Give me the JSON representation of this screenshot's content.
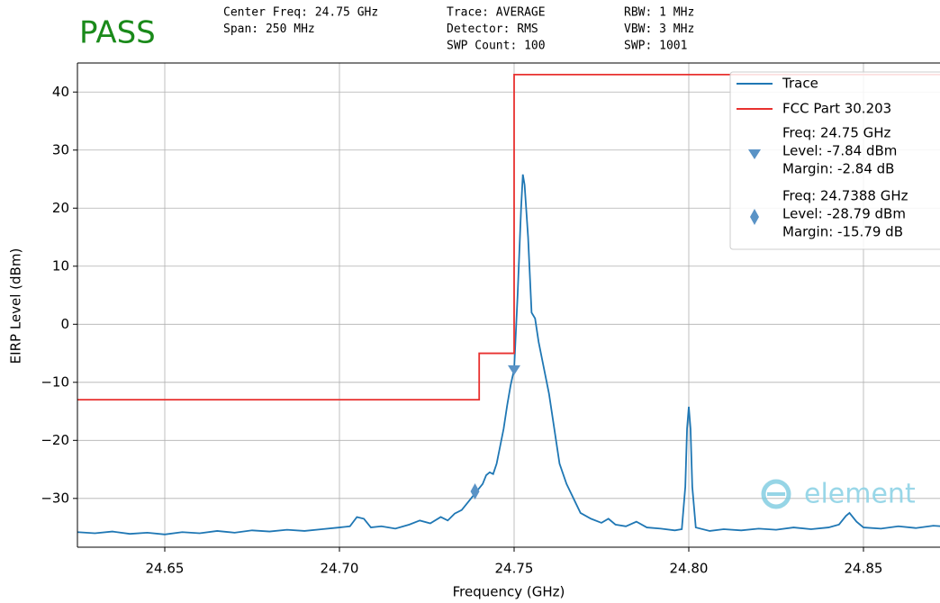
{
  "chart_data": {
    "type": "line",
    "status": "PASS",
    "status_color": "#1a8a1a",
    "info": [
      [
        "Center Freq: 24.75 GHz",
        "Span: 250 MHz"
      ],
      [
        "Trace: AVERAGE",
        "Detector: RMS",
        "SWP Count: 100"
      ],
      [
        "RBW: 1 MHz",
        "VBW: 3 MHz",
        "SWP: 1001"
      ]
    ],
    "x_label": "Frequency (GHz)",
    "y_label": "EIRP Level (dBm)",
    "xlim": [
      24.625,
      24.875
    ],
    "ylim": [
      -38.4,
      45
    ],
    "xticks": [
      24.65,
      {
        "value": 24.7,
        "label": "24.70"
      },
      24.75,
      {
        "value": 24.8,
        "label": "24.80"
      },
      24.85
    ],
    "yticks": [
      {
        "value": -30,
        "label": "−30"
      },
      {
        "value": -20,
        "label": "−20"
      },
      {
        "value": -10,
        "label": "−10"
      },
      0,
      10,
      20,
      30,
      40
    ],
    "grid": true,
    "legend": "upper right",
    "watermark": "element",
    "series": [
      {
        "name": "Trace",
        "color": "#1f77b4",
        "x": [
          24.625,
          24.63,
          24.635,
          24.64,
          24.645,
          24.65,
          24.655,
          24.66,
          24.665,
          24.67,
          24.675,
          24.68,
          24.685,
          24.69,
          24.695,
          24.7,
          24.703,
          24.705,
          24.707,
          24.709,
          24.712,
          24.716,
          24.72,
          24.723,
          24.726,
          24.729,
          24.731,
          24.733,
          24.735,
          24.737,
          24.739,
          24.741,
          24.742,
          24.743,
          24.744,
          24.745,
          24.746,
          24.747,
          24.748,
          24.749,
          24.75,
          24.751,
          24.752,
          24.7525,
          24.753,
          24.754,
          24.755,
          24.756,
          24.757,
          24.758,
          24.759,
          24.76,
          24.761,
          24.762,
          24.763,
          24.765,
          24.767,
          24.769,
          24.772,
          24.775,
          24.777,
          24.779,
          24.782,
          24.785,
          24.788,
          24.792,
          24.796,
          24.798,
          24.799,
          24.7995,
          24.8,
          24.8005,
          24.801,
          24.802,
          24.806,
          24.81,
          24.815,
          24.82,
          24.825,
          24.83,
          24.835,
          24.84,
          24.843,
          24.845,
          24.846,
          24.848,
          24.85,
          24.855,
          24.86,
          24.865,
          24.87,
          24.875
        ],
        "values": [
          -35.8,
          -36.0,
          -35.7,
          -36.1,
          -35.9,
          -36.2,
          -35.8,
          -36.0,
          -35.6,
          -35.9,
          -35.5,
          -35.7,
          -35.4,
          -35.6,
          -35.3,
          -35.0,
          -34.8,
          -33.2,
          -33.5,
          -35.0,
          -34.8,
          -35.2,
          -34.5,
          -33.8,
          -34.3,
          -33.2,
          -33.8,
          -32.6,
          -32.0,
          -30.5,
          -29.0,
          -27.5,
          -26.0,
          -25.5,
          -25.8,
          -24.0,
          -21.0,
          -18.0,
          -14.0,
          -10.5,
          -7.8,
          5.0,
          20.0,
          25.8,
          24.0,
          15.0,
          2.0,
          1.0,
          -3.0,
          -6.0,
          -9.0,
          -12.0,
          -16.0,
          -20.0,
          -24.0,
          -27.5,
          -30.0,
          -32.5,
          -33.5,
          -34.2,
          -33.5,
          -34.5,
          -34.8,
          -34.0,
          -35.0,
          -35.2,
          -35.5,
          -35.3,
          -28.0,
          -18.0,
          -14.2,
          -18.0,
          -28.0,
          -35.0,
          -35.6,
          -35.3,
          -35.5,
          -35.2,
          -35.4,
          -35.0,
          -35.3,
          -35.0,
          -34.5,
          -33.0,
          -32.5,
          -34.0,
          -35.0,
          -35.2,
          -34.8,
          -35.1,
          -34.7,
          -34.9
        ]
      },
      {
        "name": "FCC Part 30.203",
        "color": "#e8312f",
        "x": [
          24.625,
          24.74,
          24.74,
          24.75,
          24.75,
          24.875
        ],
        "values": [
          -13,
          -13,
          -5,
          -5,
          43,
          43
        ]
      }
    ],
    "markers": [
      {
        "x": 24.75,
        "y": -7.84,
        "shape": "triangle_down",
        "color": "#5a93c6",
        "legend_lines": [
          "Freq: 24.75 GHz",
          "Level: -7.84 dBm",
          "Margin: -2.84 dB"
        ]
      },
      {
        "x": 24.7388,
        "y": -28.79,
        "shape": "diamond",
        "color": "#5a93c6",
        "legend_lines": [
          "Freq: 24.7388 GHz",
          "Level: -28.79 dBm",
          "Margin: -15.79 dB"
        ]
      }
    ]
  }
}
